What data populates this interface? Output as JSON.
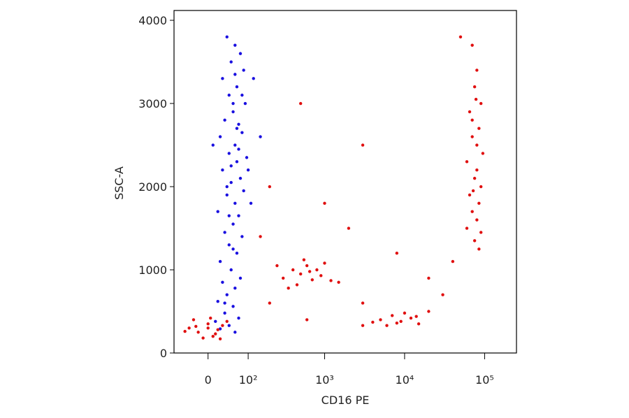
{
  "chart_data": {
    "type": "scatter",
    "x_label": "CD16 PE",
    "y_label": "SSC-A",
    "xscale": "logicle",
    "xlim": [
      -80,
      250000
    ],
    "xticks": [
      0,
      {
        "value": 100,
        "label": "10²"
      },
      {
        "value": 1000,
        "label": "10³"
      },
      {
        "value": 10000,
        "label": "10⁴"
      },
      {
        "value": 100000,
        "label": "10⁵"
      }
    ],
    "ylim": [
      0,
      4118
    ],
    "yticks": [
      0,
      1000,
      2000,
      3000,
      4000
    ],
    "series": [
      {
        "color": "#1a10e0",
        "x": [
          40,
          60,
          75,
          50,
          85,
          30,
          65,
          45,
          90,
          55,
          35,
          70,
          80,
          25,
          60,
          45,
          95,
          65,
          30,
          75,
          50,
          85,
          40,
          60,
          20,
          70,
          55,
          35,
          80,
          45,
          65,
          25,
          50,
          75,
          30,
          60,
          40,
          20,
          55,
          35,
          70,
          15,
          45,
          25,
          60,
          120,
          150,
          110,
          10,
          100,
          55,
          65,
          50,
          70,
          45,
          60,
          80,
          40,
          55,
          35
        ],
        "values": [
          3800,
          3700,
          3600,
          3500,
          3400,
          3300,
          3200,
          3100,
          3000,
          2900,
          2800,
          2750,
          2650,
          2600,
          2500,
          2400,
          2350,
          2300,
          2200,
          2100,
          2050,
          1950,
          1900,
          1800,
          1700,
          1650,
          1550,
          1450,
          1400,
          1300,
          1200,
          1100,
          1000,
          900,
          850,
          780,
          700,
          620,
          560,
          480,
          420,
          380,
          330,
          290,
          250,
          3300,
          2600,
          1800,
          2500,
          2200,
          3000,
          2700,
          2250,
          2450,
          1650,
          3350,
          3100,
          2000,
          1250,
          600
        ]
      },
      {
        "color": "#e01010",
        "x": [
          -40,
          -20,
          0,
          10,
          -30,
          20,
          30,
          -10,
          5,
          -50,
          15,
          40,
          -25,
          25,
          0,
          300,
          400,
          500,
          600,
          700,
          800,
          450,
          550,
          900,
          350,
          1200,
          250,
          650,
          1000,
          1500,
          5000,
          7000,
          9000,
          12000,
          15000,
          6000,
          10000,
          8000,
          20000,
          4000,
          14000,
          3000,
          70000,
          80000,
          75000,
          90000,
          65000,
          85000,
          70000,
          95000,
          60000,
          80000,
          75000,
          90000,
          65000,
          85000,
          70000,
          80000,
          60000,
          90000,
          75000,
          85000,
          70000,
          80000,
          72000,
          78000,
          2000,
          3000,
          200,
          500,
          1000,
          8000,
          20000,
          30000,
          150,
          40000,
          3000,
          200,
          600,
          50000
        ],
        "values": [
          300,
          250,
          350,
          200,
          400,
          280,
          330,
          180,
          420,
          260,
          230,
          380,
          320,
          170,
          300,
          900,
          1000,
          950,
          1050,
          880,
          1000,
          820,
          1120,
          930,
          780,
          870,
          1050,
          980,
          1080,
          850,
          400,
          450,
          380,
          420,
          350,
          330,
          480,
          360,
          500,
          370,
          440,
          330,
          3700,
          3400,
          3200,
          3000,
          2900,
          2700,
          2600,
          2400,
          2300,
          2200,
          2100,
          2000,
          1900,
          1800,
          1700,
          1600,
          1500,
          1450,
          1350,
          1250,
          2800,
          2500,
          1950,
          3050,
          1500,
          2500,
          2000,
          3000,
          1800,
          1200,
          900,
          700,
          1400,
          1100,
          600,
          600,
          400,
          3800
        ]
      }
    ]
  }
}
